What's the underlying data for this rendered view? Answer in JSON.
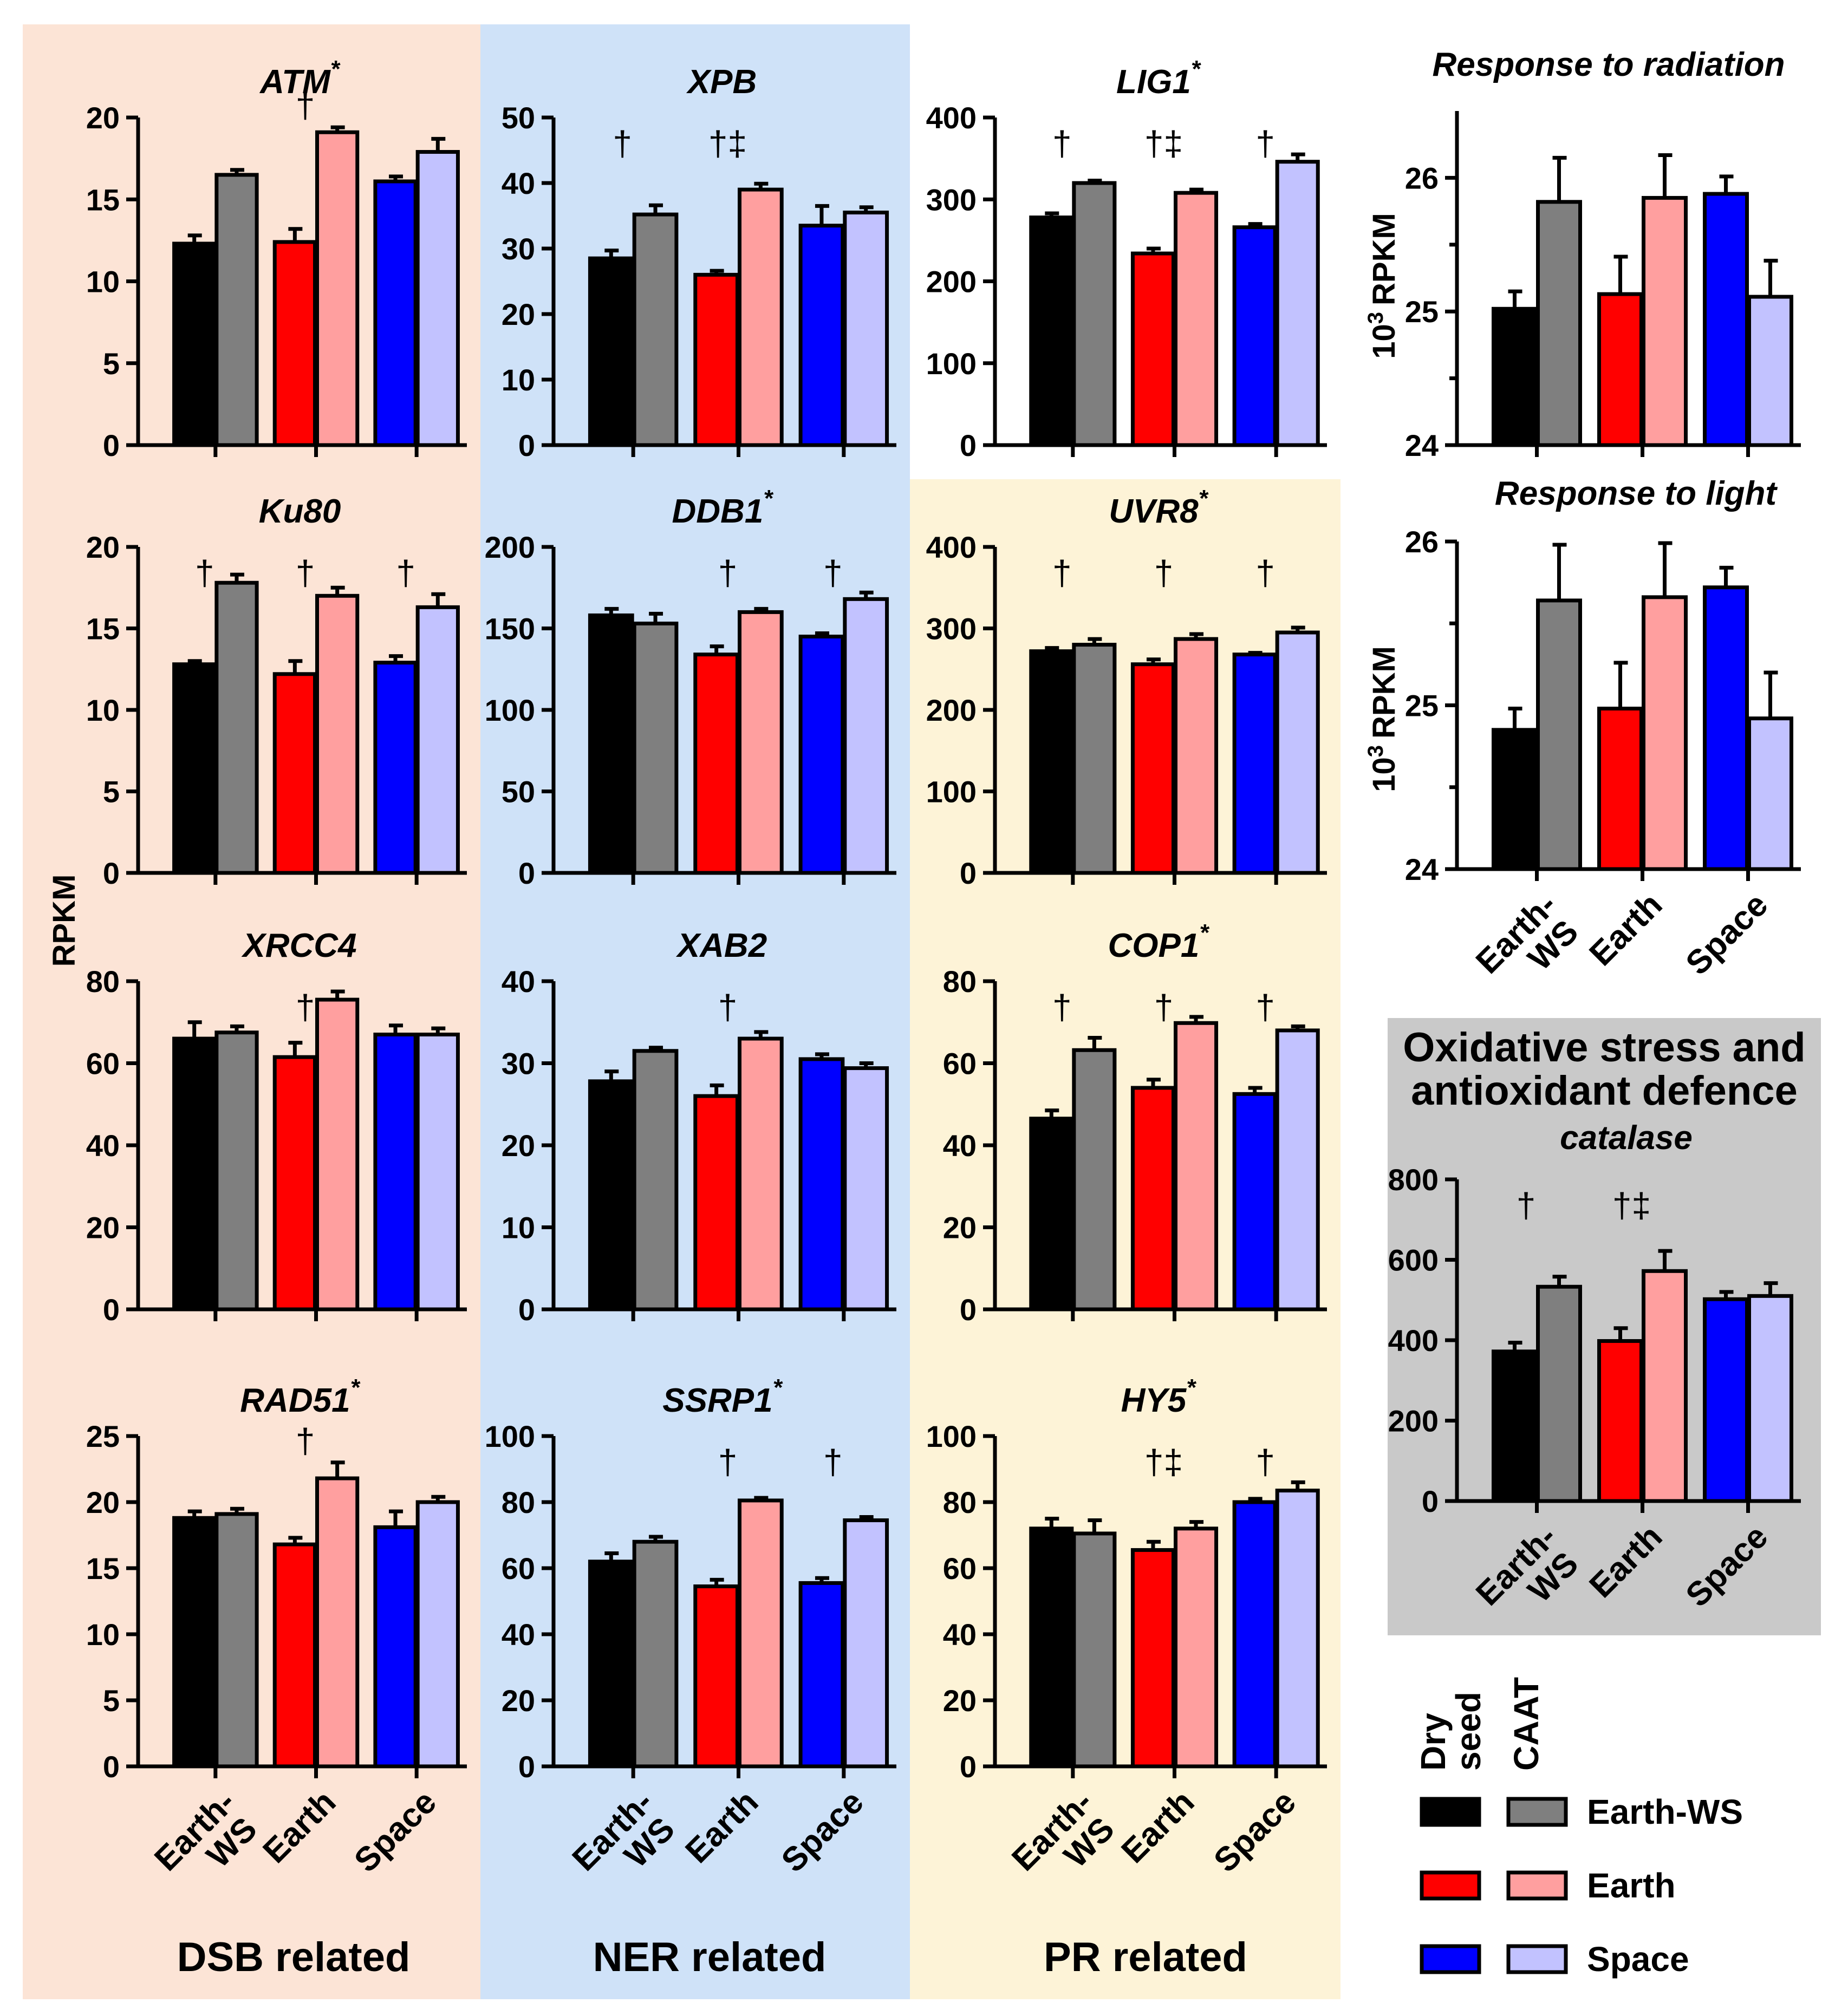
{
  "colors": {
    "dry_earth_ws": "#000000",
    "caat_earth_ws": "#7f7f7f",
    "dry_earth": "#ff0000",
    "caat_earth": "#ff9f9f",
    "dry_space": "#0000ff",
    "caat_space": "#c2c2ff",
    "bg_dsb": "#fce4d6",
    "bg_ner": "#cfe2f8",
    "bg_pr": "#fdf3d7",
    "bg_oxidative": "#c9c9c9"
  },
  "groups": {
    "dsb": "DSB related",
    "ner": "NER related",
    "pr": "PR related",
    "oxidative": [
      "Oxidative stress and",
      "antioxidant defence"
    ]
  },
  "axis_labels": {
    "rpkm": "RPKM",
    "rpkm_1e3_base": "10",
    "rpkm_1e3_exp": "3",
    "rpkm_1e3_unit": "RPKM"
  },
  "x_categories": {
    "earth_ws_line1": "Earth-",
    "earth_ws_line2": "WS",
    "earth": "Earth",
    "space": "Space"
  },
  "legend": {
    "header_dry_line1": "Dry",
    "header_dry_line2": "seed",
    "header_caat": "CAAT",
    "items": [
      "Earth-WS",
      "Earth",
      "Space"
    ]
  },
  "chart_data": [
    {
      "id": "atm",
      "type": "bar",
      "title": "ATM",
      "star": "*",
      "yticks": [
        0,
        5,
        10,
        15,
        20
      ],
      "ylim": [
        0,
        20
      ],
      "categories": [
        "Earth-WS",
        "Earth",
        "Space"
      ],
      "series": [
        {
          "name": "Dry seed",
          "values": [
            12.3,
            12.4,
            16.1
          ],
          "errors": [
            0.5,
            0.8,
            0.3
          ]
        },
        {
          "name": "CAAT",
          "values": [
            16.5,
            19.1,
            17.9
          ],
          "errors": [
            0.3,
            0.3,
            0.8
          ]
        }
      ],
      "marks": [
        "",
        "†",
        ""
      ]
    },
    {
      "id": "xpb",
      "type": "bar",
      "title": "XPB",
      "star": "",
      "yticks": [
        0,
        10,
        20,
        30,
        40,
        50
      ],
      "ylim": [
        0,
        50
      ],
      "categories": [
        "Earth-WS",
        "Earth",
        "Space"
      ],
      "series": [
        {
          "name": "Dry seed",
          "values": [
            28.5,
            26.0,
            33.5
          ],
          "errors": [
            1.2,
            0.6,
            3.0
          ]
        },
        {
          "name": "CAAT",
          "values": [
            35.2,
            39.0,
            35.5
          ],
          "errors": [
            1.4,
            0.9,
            0.8
          ]
        }
      ],
      "marks": [
        "†",
        "†‡",
        ""
      ]
    },
    {
      "id": "lig1",
      "type": "bar",
      "title": "LIG1",
      "star": "*",
      "yticks": [
        0,
        100,
        200,
        300,
        400
      ],
      "ylim": [
        0,
        400
      ],
      "categories": [
        "Earth-WS",
        "Earth",
        "Space"
      ],
      "series": [
        {
          "name": "Dry seed",
          "values": [
            278,
            234,
            266
          ],
          "errors": [
            5,
            6,
            4
          ]
        },
        {
          "name": "CAAT",
          "values": [
            320,
            308,
            346
          ],
          "errors": [
            3,
            4,
            9
          ]
        }
      ],
      "marks": [
        "†",
        "†‡",
        "†"
      ]
    },
    {
      "id": "radiation",
      "type": "bar",
      "title": "Response to radiation",
      "star": "",
      "yticks": [
        24,
        25,
        26
      ],
      "ylim": [
        24,
        26.5
      ],
      "units": "10^3 RPKM",
      "categories": [
        "Earth-WS",
        "Earth",
        "Space"
      ],
      "series": [
        {
          "name": "Dry seed",
          "values": [
            25.02,
            25.13,
            25.88
          ],
          "errors": [
            0.13,
            0.28,
            0.13
          ]
        },
        {
          "name": "CAAT",
          "values": [
            25.82,
            25.85,
            25.11
          ],
          "errors": [
            0.33,
            0.32,
            0.27
          ]
        }
      ],
      "marks": [
        "",
        "",
        ""
      ]
    },
    {
      "id": "ku80",
      "type": "bar",
      "title": "Ku80",
      "star": "",
      "yticks": [
        0,
        5,
        10,
        15,
        20
      ],
      "ylim": [
        0,
        20
      ],
      "categories": [
        "Earth-WS",
        "Earth",
        "Space"
      ],
      "series": [
        {
          "name": "Dry seed",
          "values": [
            12.8,
            12.2,
            12.9
          ],
          "errors": [
            0.2,
            0.8,
            0.4
          ]
        },
        {
          "name": "CAAT",
          "values": [
            17.8,
            17.0,
            16.3
          ],
          "errors": [
            0.5,
            0.5,
            0.8
          ]
        }
      ],
      "marks": [
        "†",
        "†",
        "†"
      ]
    },
    {
      "id": "ddb1",
      "type": "bar",
      "title": "DDB1",
      "star": "*",
      "yticks": [
        0,
        50,
        100,
        150,
        200
      ],
      "ylim": [
        0,
        200
      ],
      "categories": [
        "Earth-WS",
        "Earth",
        "Space"
      ],
      "series": [
        {
          "name": "Dry seed",
          "values": [
            158,
            134,
            145
          ],
          "errors": [
            4,
            5,
            2
          ]
        },
        {
          "name": "CAAT",
          "values": [
            153,
            160,
            168
          ],
          "errors": [
            6,
            2,
            4
          ]
        }
      ],
      "marks": [
        "",
        "†",
        "†"
      ]
    },
    {
      "id": "uvr8",
      "type": "bar",
      "title": "UVR8",
      "star": "*",
      "yticks": [
        0,
        100,
        200,
        300,
        400
      ],
      "ylim": [
        0,
        400
      ],
      "categories": [
        "Earth-WS",
        "Earth",
        "Space"
      ],
      "series": [
        {
          "name": "Dry seed",
          "values": [
            272,
            256,
            268
          ],
          "errors": [
            4,
            6,
            2
          ]
        },
        {
          "name": "CAAT",
          "values": [
            280,
            287,
            295
          ],
          "errors": [
            7,
            6,
            6
          ]
        }
      ],
      "marks": [
        "†",
        "†",
        "†"
      ]
    },
    {
      "id": "light",
      "type": "bar",
      "title": "Response to light",
      "star": "",
      "yticks": [
        24,
        25,
        26
      ],
      "ylim": [
        24,
        26
      ],
      "units": "10^3 RPKM",
      "categories": [
        "Earth-WS",
        "Earth",
        "Space"
      ],
      "series": [
        {
          "name": "Dry seed",
          "values": [
            24.85,
            24.98,
            25.72
          ],
          "errors": [
            0.13,
            0.28,
            0.12
          ]
        },
        {
          "name": "CAAT",
          "values": [
            25.64,
            25.66,
            24.92
          ],
          "errors": [
            0.34,
            0.33,
            0.28
          ]
        }
      ],
      "marks": [
        "",
        "",
        ""
      ]
    },
    {
      "id": "xrcc4",
      "type": "bar",
      "title": "XRCC4",
      "star": "",
      "yticks": [
        0,
        20,
        40,
        60,
        80
      ],
      "ylim": [
        0,
        80
      ],
      "categories": [
        "Earth-WS",
        "Earth",
        "Space"
      ],
      "series": [
        {
          "name": "Dry seed",
          "values": [
            66,
            61.5,
            67
          ],
          "errors": [
            4,
            3.5,
            2.2
          ]
        },
        {
          "name": "CAAT",
          "values": [
            67.5,
            75.5,
            67
          ],
          "errors": [
            1.5,
            2.0,
            1.5
          ]
        }
      ],
      "marks": [
        "",
        "†",
        ""
      ]
    },
    {
      "id": "xab2",
      "type": "bar",
      "title": "XAB2",
      "star": "",
      "yticks": [
        0,
        10,
        20,
        30,
        40
      ],
      "ylim": [
        0,
        40
      ],
      "categories": [
        "Earth-WS",
        "Earth",
        "Space"
      ],
      "series": [
        {
          "name": "Dry seed",
          "values": [
            27.8,
            26.0,
            30.5
          ],
          "errors": [
            1.2,
            1.3,
            0.6
          ]
        },
        {
          "name": "CAAT",
          "values": [
            31.5,
            33.0,
            29.4
          ],
          "errors": [
            0.4,
            0.8,
            0.6
          ]
        }
      ],
      "marks": [
        "",
        "†",
        ""
      ]
    },
    {
      "id": "cop1",
      "type": "bar",
      "title": "COP1",
      "star": "*",
      "yticks": [
        0,
        20,
        40,
        60,
        80
      ],
      "ylim": [
        0,
        80
      ],
      "categories": [
        "Earth-WS",
        "Earth",
        "Space"
      ],
      "series": [
        {
          "name": "Dry seed",
          "values": [
            46.5,
            54.0,
            52.5
          ],
          "errors": [
            2.0,
            2.0,
            1.5
          ]
        },
        {
          "name": "CAAT",
          "values": [
            63.2,
            69.8,
            68.0
          ],
          "errors": [
            3.0,
            1.5,
            1.0
          ]
        }
      ],
      "marks": [
        "†",
        "†",
        "†"
      ]
    },
    {
      "id": "catalase",
      "type": "bar",
      "title": "catalase",
      "star": "",
      "yticks": [
        0,
        200,
        400,
        600,
        800
      ],
      "ylim": [
        0,
        800
      ],
      "categories": [
        "Earth-WS",
        "Earth",
        "Space"
      ],
      "series": [
        {
          "name": "Dry seed",
          "values": [
            372,
            398,
            502
          ],
          "errors": [
            22,
            32,
            18
          ]
        },
        {
          "name": "CAAT",
          "values": [
            533,
            572,
            510
          ],
          "errors": [
            25,
            50,
            32
          ]
        }
      ],
      "marks": [
        "†",
        "†‡",
        ""
      ]
    },
    {
      "id": "rad51",
      "type": "bar",
      "title": "RAD51",
      "star": "*",
      "yticks": [
        0,
        5,
        10,
        15,
        20,
        25
      ],
      "ylim": [
        0,
        25
      ],
      "categories": [
        "Earth-WS",
        "Earth",
        "Space"
      ],
      "series": [
        {
          "name": "Dry seed",
          "values": [
            18.8,
            16.8,
            18.1
          ],
          "errors": [
            0.5,
            0.5,
            1.2
          ]
        },
        {
          "name": "CAAT",
          "values": [
            19.1,
            21.8,
            20.0
          ],
          "errors": [
            0.4,
            1.2,
            0.4
          ]
        }
      ],
      "marks": [
        "",
        "†",
        ""
      ]
    },
    {
      "id": "ssrp1",
      "type": "bar",
      "title": "SSRP1",
      "star": "*",
      "yticks": [
        0,
        20,
        40,
        60,
        80,
        100
      ],
      "ylim": [
        0,
        100
      ],
      "categories": [
        "Earth-WS",
        "Earth",
        "Space"
      ],
      "series": [
        {
          "name": "Dry seed",
          "values": [
            62,
            54.5,
            55.5
          ],
          "errors": [
            2.5,
            2.0,
            1.5
          ]
        },
        {
          "name": "CAAT",
          "values": [
            68,
            80.5,
            74.5
          ],
          "errors": [
            1.5,
            0.8,
            1.0
          ]
        }
      ],
      "marks": [
        "",
        "†",
        "†"
      ]
    },
    {
      "id": "hy5",
      "type": "bar",
      "title": "HY5",
      "star": "*",
      "yticks": [
        0,
        20,
        40,
        60,
        80,
        100
      ],
      "ylim": [
        0,
        100
      ],
      "categories": [
        "Earth-WS",
        "Earth",
        "Space"
      ],
      "series": [
        {
          "name": "Dry seed",
          "values": [
            72,
            65.5,
            80
          ],
          "errors": [
            3.0,
            2.5,
            1.0
          ]
        },
        {
          "name": "CAAT",
          "values": [
            70.5,
            72,
            83.5
          ],
          "errors": [
            4.0,
            2.0,
            2.5
          ]
        }
      ],
      "marks": [
        "",
        "†‡",
        "†"
      ]
    }
  ]
}
